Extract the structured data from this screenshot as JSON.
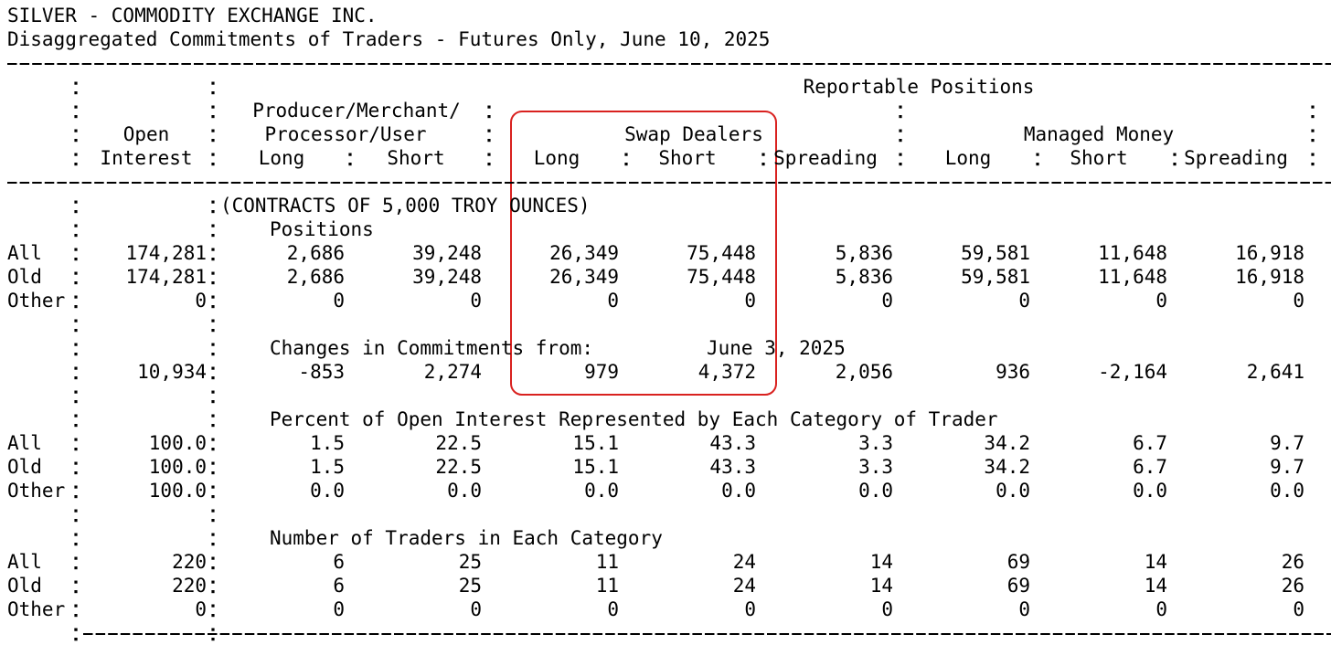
{
  "header": {
    "title": "SILVER - COMMODITY EXCHANGE INC.",
    "subtitle": "Disaggregated Commitments of Traders - Futures Only, June 10, 2025"
  },
  "table": {
    "group_title": "Reportable Positions",
    "open_interest_header": [
      "Open",
      "Interest"
    ],
    "producer_header": [
      "Producer/Merchant/",
      "Processor/User"
    ],
    "swap_header": "Swap Dealers",
    "managed_header": "Managed Money",
    "subheaders": [
      "Long",
      "Short",
      "Long",
      "Short",
      "Spreading",
      "Long",
      "Short",
      "Spreading"
    ],
    "units": "(CONTRACTS OF 5,000 TROY OUNCES)",
    "positions": {
      "title": "Positions",
      "rows": [
        {
          "label": "All",
          "values": [
            "174,281",
            "2,686",
            "39,248",
            "26,349",
            "75,448",
            "5,836",
            "59,581",
            "11,648",
            "16,918"
          ]
        },
        {
          "label": "Old",
          "values": [
            "174,281",
            "2,686",
            "39,248",
            "26,349",
            "75,448",
            "5,836",
            "59,581",
            "11,648",
            "16,918"
          ]
        },
        {
          "label": "Other",
          "values": [
            "0",
            "0",
            "0",
            "0",
            "0",
            "0",
            "0",
            "0",
            "0"
          ]
        }
      ]
    },
    "changes": {
      "title": "Changes in Commitments from:",
      "date": "June 3, 2025",
      "values": [
        "10,934",
        "-853",
        "2,274",
        "979",
        "4,372",
        "2,056",
        "936",
        "-2,164",
        "2,641"
      ]
    },
    "percent": {
      "title": "Percent of Open Interest Represented by Each Category of Trader",
      "rows": [
        {
          "label": "All",
          "values": [
            "100.0",
            "1.5",
            "22.5",
            "15.1",
            "43.3",
            "3.3",
            "34.2",
            "6.7",
            "9.7"
          ]
        },
        {
          "label": "Old",
          "values": [
            "100.0",
            "1.5",
            "22.5",
            "15.1",
            "43.3",
            "3.3",
            "34.2",
            "6.7",
            "9.7"
          ]
        },
        {
          "label": "Other",
          "values": [
            "100.0",
            "0.0",
            "0.0",
            "0.0",
            "0.0",
            "0.0",
            "0.0",
            "0.0",
            "0.0"
          ]
        }
      ]
    },
    "traders": {
      "title": "Number of Traders in Each Category",
      "rows": [
        {
          "label": "All",
          "values": [
            "220",
            "6",
            "25",
            "11",
            "24",
            "14",
            "69",
            "14",
            "26"
          ]
        },
        {
          "label": "Old",
          "values": [
            "220",
            "6",
            "25",
            "11",
            "24",
            "14",
            "69",
            "14",
            "26"
          ]
        },
        {
          "label": "Other",
          "values": [
            "0",
            "0",
            "0",
            "0",
            "0",
            "0",
            "0",
            "0",
            "0"
          ]
        }
      ]
    }
  }
}
